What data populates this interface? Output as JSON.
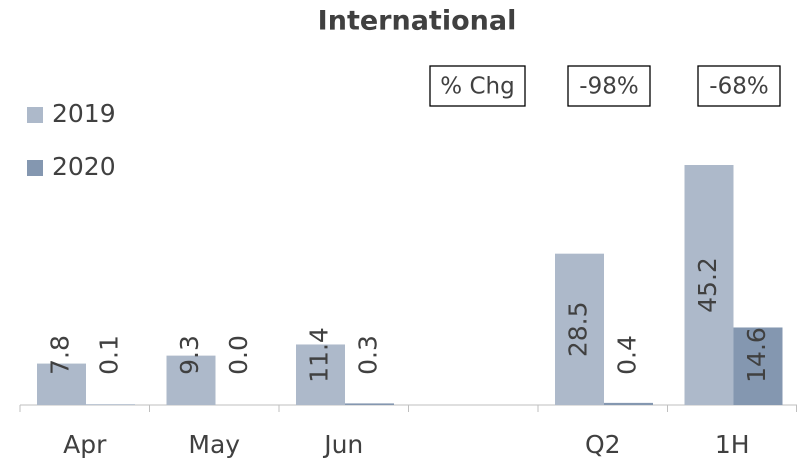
{
  "chart_data": {
    "type": "bar",
    "title": "International",
    "categories": [
      "Apr",
      "May",
      "Jun",
      null,
      "Q2",
      "1H"
    ],
    "series": [
      {
        "name": "2019",
        "color": "#adb9ca",
        "values": [
          7.8,
          9.3,
          11.4,
          null,
          28.5,
          45.2
        ],
        "value_labels": [
          "7.8",
          "9.3",
          "11.4",
          null,
          "28.5",
          "45.2"
        ]
      },
      {
        "name": "2020",
        "color": "#8497b0",
        "values": [
          0.1,
          0.0,
          0.3,
          null,
          0.4,
          14.6
        ],
        "value_labels": [
          "0.1",
          "0.0",
          "0.3",
          null,
          "0.4",
          "14.6"
        ]
      }
    ],
    "annotations": [
      "% Chg",
      "-98%",
      "-68%"
    ],
    "legend": "left"
  }
}
